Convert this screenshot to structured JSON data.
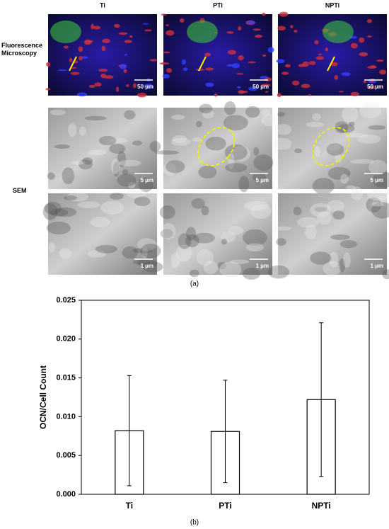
{
  "panel_a": {
    "columns": [
      "Ti",
      "PTi",
      "NPTi"
    ],
    "rows": [
      "Fluorescence Microscopy",
      "SEM"
    ],
    "scale_bars": [
      [
        "50 µm",
        "50 µm",
        "50 µm"
      ],
      [
        "5 µm",
        "5 µm",
        "5 µm"
      ],
      [
        "1 µm",
        "1 µm",
        "1 µm"
      ]
    ],
    "caption": "(a)"
  },
  "chart_data": {
    "type": "bar",
    "y_label": "OCN/Cell Count",
    "categories": [
      "Ti",
      "PTi",
      "NPTi"
    ],
    "values": [
      0.0082,
      0.0081,
      0.0122
    ],
    "errors": [
      0.0071,
      0.0066,
      0.0099
    ],
    "color": "#ffffff",
    "edge_color": "#000000",
    "ylim": [
      0,
      0.025
    ],
    "yticks": [
      {
        "value": 0,
        "label": "0.000"
      },
      {
        "value": 0.005,
        "label": "0.005"
      },
      {
        "value": 0.01,
        "label": "0.010"
      },
      {
        "value": 0.015,
        "label": "0.015"
      },
      {
        "value": 0.02,
        "label": "0.020"
      },
      {
        "value": 0.025,
        "label": "0.025"
      }
    ],
    "caption": "(b)"
  }
}
